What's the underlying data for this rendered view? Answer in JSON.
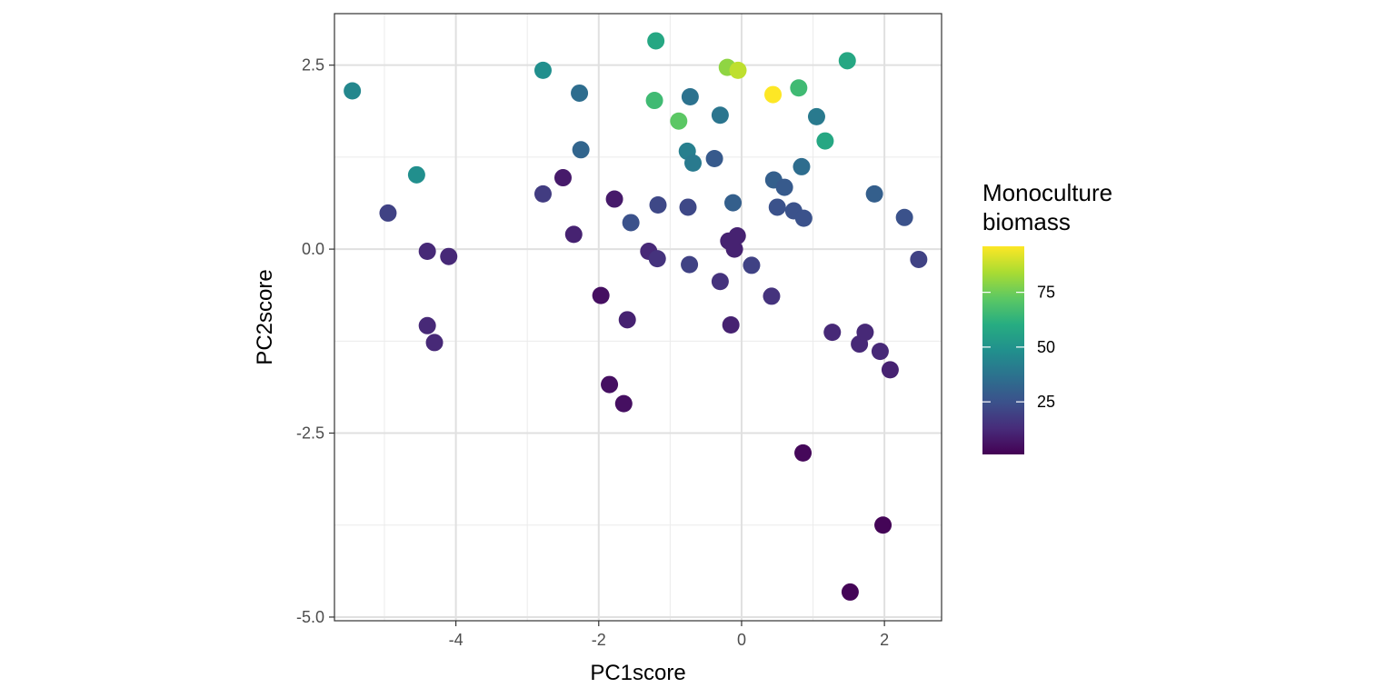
{
  "chart_data": {
    "type": "scatter",
    "xlabel": "PC1score",
    "ylabel": "PC2score",
    "xlim": [
      -5.7,
      2.8
    ],
    "ylim": [
      -5.05,
      3.2
    ],
    "x_ticks": [
      -4,
      -2,
      0,
      2
    ],
    "x_tick_labels": [
      "-4",
      "-2",
      "0",
      "2"
    ],
    "y_ticks": [
      2.5,
      0.0,
      -2.5,
      -5.0
    ],
    "y_tick_labels": [
      "2.5",
      "0.0",
      "-2.5",
      "-5.0"
    ],
    "grid": true,
    "legend": {
      "title_line1": "Monoculture",
      "title_line2": "biomass",
      "placement": "right",
      "range": [
        1,
        96
      ],
      "ticks": [
        25,
        50,
        75
      ],
      "tick_labels": [
        "25",
        "50",
        "75"
      ],
      "colormap": "viridis"
    },
    "points": [
      {
        "x": -5.45,
        "y": 2.15,
        "c": 45
      },
      {
        "x": -4.95,
        "y": 0.49,
        "c": 20
      },
      {
        "x": -4.55,
        "y": 1.01,
        "c": 48
      },
      {
        "x": -4.4,
        "y": -0.03,
        "c": 12
      },
      {
        "x": -4.1,
        "y": -0.1,
        "c": 12
      },
      {
        "x": -4.4,
        "y": -1.04,
        "c": 12
      },
      {
        "x": -4.3,
        "y": -1.27,
        "c": 12
      },
      {
        "x": -2.78,
        "y": 2.43,
        "c": 48
      },
      {
        "x": -2.78,
        "y": 0.75,
        "c": 18
      },
      {
        "x": -2.5,
        "y": 0.97,
        "c": 8
      },
      {
        "x": -2.35,
        "y": 0.2,
        "c": 10
      },
      {
        "x": -2.27,
        "y": 2.12,
        "c": 35
      },
      {
        "x": -2.25,
        "y": 1.35,
        "c": 32
      },
      {
        "x": -1.97,
        "y": -0.63,
        "c": 5
      },
      {
        "x": -1.85,
        "y": -1.84,
        "c": 5
      },
      {
        "x": -1.78,
        "y": 0.68,
        "c": 8
      },
      {
        "x": -1.65,
        "y": -2.1,
        "c": 5
      },
      {
        "x": -1.6,
        "y": -0.96,
        "c": 10
      },
      {
        "x": -1.55,
        "y": 0.36,
        "c": 25
      },
      {
        "x": -1.2,
        "y": 2.83,
        "c": 58
      },
      {
        "x": -1.22,
        "y": 2.02,
        "c": 66
      },
      {
        "x": -1.3,
        "y": -0.03,
        "c": 12
      },
      {
        "x": -1.18,
        "y": -0.13,
        "c": 15
      },
      {
        "x": -1.17,
        "y": 0.6,
        "c": 22
      },
      {
        "x": -0.88,
        "y": 1.74,
        "c": 72
      },
      {
        "x": -0.76,
        "y": 1.33,
        "c": 42
      },
      {
        "x": -0.75,
        "y": 0.57,
        "c": 22
      },
      {
        "x": -0.73,
        "y": -0.21,
        "c": 20
      },
      {
        "x": -0.72,
        "y": 2.07,
        "c": 37
      },
      {
        "x": -0.68,
        "y": 1.17,
        "c": 40
      },
      {
        "x": -0.38,
        "y": 1.23,
        "c": 28
      },
      {
        "x": -0.3,
        "y": 1.82,
        "c": 38
      },
      {
        "x": -0.3,
        "y": -0.44,
        "c": 15
      },
      {
        "x": -0.2,
        "y": 2.47,
        "c": 80
      },
      {
        "x": -0.05,
        "y": 2.43,
        "c": 87
      },
      {
        "x": -0.18,
        "y": 0.11,
        "c": 10
      },
      {
        "x": -0.12,
        "y": 0.63,
        "c": 30
      },
      {
        "x": -0.1,
        "y": 0.0,
        "c": 10
      },
      {
        "x": -0.06,
        "y": 0.18,
        "c": 10
      },
      {
        "x": -0.15,
        "y": -1.03,
        "c": 10
      },
      {
        "x": 0.14,
        "y": -0.22,
        "c": 20
      },
      {
        "x": 0.42,
        "y": -0.64,
        "c": 15
      },
      {
        "x": 0.44,
        "y": 2.1,
        "c": 96
      },
      {
        "x": 0.45,
        "y": 0.94,
        "c": 30
      },
      {
        "x": 0.5,
        "y": 0.57,
        "c": 25
      },
      {
        "x": 0.6,
        "y": 0.84,
        "c": 28
      },
      {
        "x": 0.73,
        "y": 0.52,
        "c": 25
      },
      {
        "x": 0.8,
        "y": 2.19,
        "c": 66
      },
      {
        "x": 0.84,
        "y": 1.12,
        "c": 35
      },
      {
        "x": 0.87,
        "y": 0.42,
        "c": 25
      },
      {
        "x": 0.86,
        "y": -2.77,
        "c": 3
      },
      {
        "x": 1.05,
        "y": 1.8,
        "c": 40
      },
      {
        "x": 1.17,
        "y": 1.47,
        "c": 58
      },
      {
        "x": 1.27,
        "y": -1.13,
        "c": 12
      },
      {
        "x": 1.48,
        "y": 2.56,
        "c": 58
      },
      {
        "x": 1.52,
        "y": -4.66,
        "c": 2
      },
      {
        "x": 1.65,
        "y": -1.29,
        "c": 12
      },
      {
        "x": 1.73,
        "y": -1.13,
        "c": 12
      },
      {
        "x": 1.86,
        "y": 0.75,
        "c": 30
      },
      {
        "x": 1.94,
        "y": -1.39,
        "c": 12
      },
      {
        "x": 1.98,
        "y": -3.75,
        "c": 2
      },
      {
        "x": 2.08,
        "y": -1.64,
        "c": 10
      },
      {
        "x": 2.28,
        "y": 0.43,
        "c": 25
      },
      {
        "x": 2.48,
        "y": -0.14,
        "c": 20
      }
    ]
  }
}
